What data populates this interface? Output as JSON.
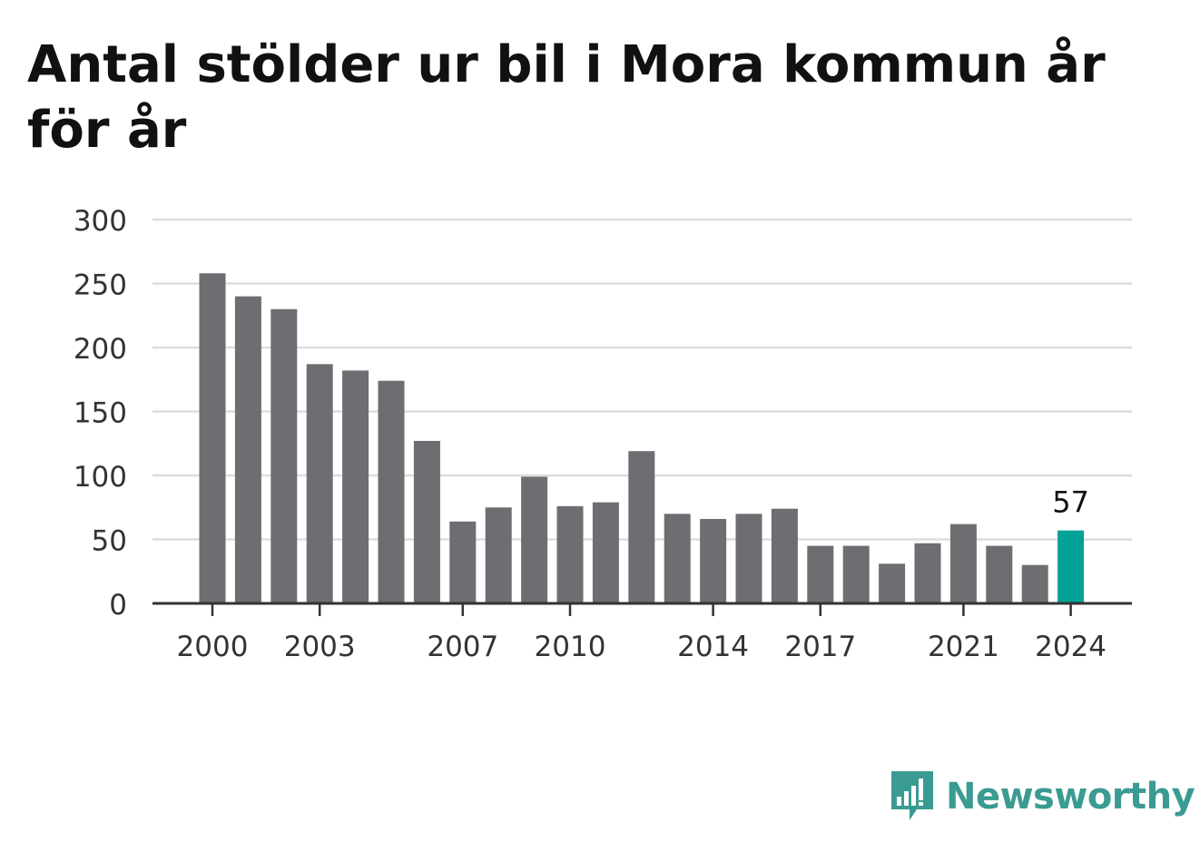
{
  "chart_data": {
    "type": "bar",
    "title": "Antal stölder ur bil i Mora kommun år för år",
    "years": [
      2000,
      2001,
      2002,
      2003,
      2004,
      2005,
      2006,
      2007,
      2008,
      2009,
      2010,
      2011,
      2012,
      2013,
      2014,
      2015,
      2016,
      2017,
      2018,
      2019,
      2020,
      2021,
      2022,
      2023,
      2024
    ],
    "values": [
      258,
      240,
      230,
      187,
      182,
      174,
      127,
      64,
      75,
      99,
      76,
      79,
      119,
      70,
      66,
      70,
      74,
      45,
      45,
      31,
      47,
      62,
      45,
      30,
      57
    ],
    "xtick_labels": [
      "2000",
      "2003",
      "2007",
      "2010",
      "2014",
      "2017",
      "2021",
      "2024"
    ],
    "ytick_labels": [
      "0",
      "50",
      "100",
      "150",
      "200",
      "250",
      "300"
    ],
    "ylim": [
      0,
      300
    ],
    "highlight": {
      "year": 2024,
      "label": "57"
    },
    "grid": true,
    "colors": {
      "bar": "#6e6d72",
      "highlight": "#00a396",
      "grid": "#dddddd",
      "axis": "#333333"
    }
  },
  "brand": {
    "name": "Newsworthy",
    "icon": "newsworthy-logo-icon",
    "color": "#3a9b92"
  }
}
